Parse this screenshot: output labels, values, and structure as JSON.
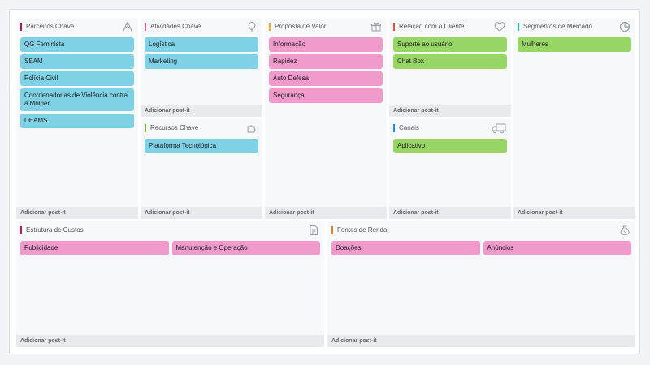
{
  "colors": {
    "blue_note": "#7fd1e6",
    "pink_note": "#f09acb",
    "green_note": "#97d565",
    "parceiros_accent": "#c2185b",
    "atividades_accent": "#e05a9a",
    "recursos_accent": "#7cb342",
    "proposta_accent": "#f5a623",
    "relacao_accent": "#e74c3c",
    "canais_accent": "#1e88e5",
    "segmentos_accent": "#1abc9c",
    "custos_accent": "#c2185b",
    "receita_accent": "#e67e22"
  },
  "add_label": "Adicionar post-it",
  "parceiros": {
    "title": "Parceiros Chave",
    "icon": "handshake-icon",
    "notes": [
      "QG Feminista",
      "SEAM",
      "Polícia Civil",
      "Coordenadorias de Violência contra a Mulher",
      "DEAMS"
    ]
  },
  "atividades": {
    "title": "Atividades Chave",
    "icon": "lightbulb-icon",
    "notes": [
      "Logística",
      "Marketing"
    ]
  },
  "recursos": {
    "title": "Recursos Chave",
    "icon": "puzzle-icon",
    "notes": [
      "Plataforma Tecnológica"
    ]
  },
  "proposta": {
    "title": "Proposta de Valor",
    "icon": "gift-icon",
    "notes": [
      "Informação",
      "Rapidez",
      "Auto Defesa",
      "Segurança"
    ]
  },
  "relacao": {
    "title": "Relação com o Cliente",
    "icon": "heart-icon",
    "notes": [
      "Suporte ao usuário",
      "Chat Box"
    ]
  },
  "canais": {
    "title": "Canais",
    "icon": "truck-icon",
    "notes": [
      "Aplicativo"
    ]
  },
  "segmentos": {
    "title": "Segmentos de Mercado",
    "icon": "pie-chart-icon",
    "notes": [
      "Mulheres"
    ]
  },
  "custos": {
    "title": "Estrutura de Custos",
    "icon": "document-icon",
    "notes": [
      "Publicidade",
      "Manutenção e Operação"
    ]
  },
  "receita": {
    "title": "Fontes de Renda",
    "icon": "money-bag-icon",
    "notes": [
      "Doações",
      "Anúncios"
    ]
  }
}
